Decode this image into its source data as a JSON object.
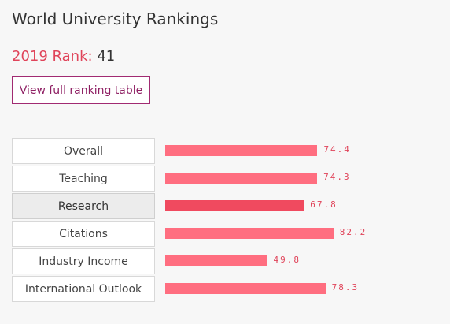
{
  "widget": {
    "title": "World University Rankings",
    "rank_label": "2019 Rank:",
    "rank_value": "41",
    "view_button": "View full ranking table"
  },
  "colors": {
    "accent": "#e0445a",
    "bar": "#ff6e80",
    "bar_active": "#f04a5f",
    "button_border": "#a12a72"
  },
  "metrics": [
    {
      "label": "Overall",
      "score": "74.4",
      "value": 74.4,
      "selected": false
    },
    {
      "label": "Teaching",
      "score": "74.3",
      "value": 74.3,
      "selected": false
    },
    {
      "label": "Research",
      "score": "67.8",
      "value": 67.8,
      "selected": true
    },
    {
      "label": "Citations",
      "score": "82.2",
      "value": 82.2,
      "selected": false
    },
    {
      "label": "Industry Income",
      "score": "49.8",
      "value": 49.8,
      "selected": false
    },
    {
      "label": "International Outlook",
      "score": "78.3",
      "value": 78.3,
      "selected": false
    }
  ]
}
